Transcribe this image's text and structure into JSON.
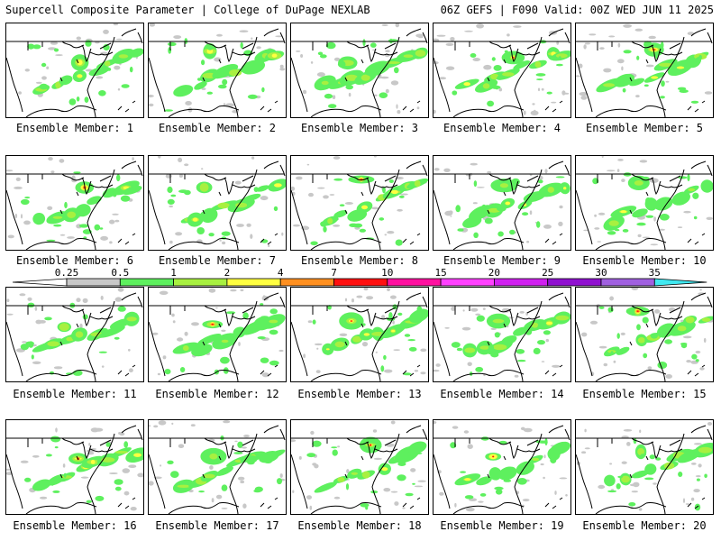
{
  "header": {
    "left_title": "Supercell Composite Parameter | College of DuPage NEXLAB",
    "right_title": "06Z GEFS | F090 Valid: 00Z WED JUN 11 2025"
  },
  "member_label": "Ensemble Member:",
  "members": [
    1,
    2,
    3,
    4,
    5,
    6,
    7,
    8,
    9,
    10,
    11,
    12,
    13,
    14,
    15,
    16,
    17,
    18,
    19,
    20
  ],
  "legend": {
    "levels": [
      "0.25",
      "0.5",
      "1",
      "2",
      "4",
      "7",
      "10",
      "15",
      "20",
      "25",
      "30",
      "35"
    ],
    "colors": [
      "#ffffff",
      "#c8c8c8",
      "#5ef05e",
      "#a8f040",
      "#ffff40",
      "#ff9020",
      "#ff1010",
      "#ff10a0",
      "#ff40ff",
      "#d020f0",
      "#9010d0",
      "#a060e0",
      "#40e8f0"
    ]
  },
  "map_colors": {
    "land_lines": "#000000",
    "gray": "#c8c8c8",
    "green": "#5ef05e",
    "lime": "#a8f040",
    "yellow": "#ffff40",
    "orange": "#ff9020",
    "red": "#ff1010"
  }
}
